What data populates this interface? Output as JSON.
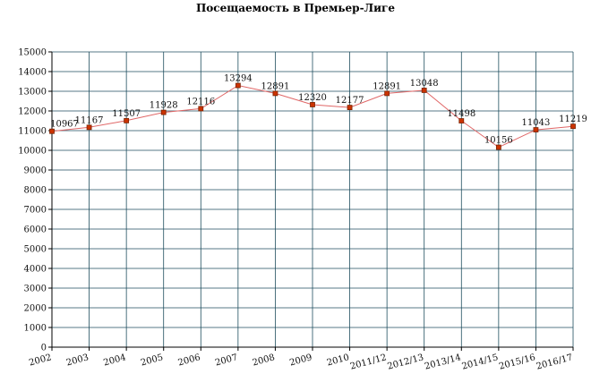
{
  "chart_data": {
    "type": "line",
    "title": "Посещаемость в Премьер-Лиге",
    "xlabel": "",
    "ylabel": "",
    "ylim": [
      0,
      15000
    ],
    "yticks": [
      0,
      1000,
      2000,
      3000,
      4000,
      5000,
      6000,
      7000,
      8000,
      9000,
      10000,
      11000,
      12000,
      13000,
      14000,
      15000
    ],
    "grid": true,
    "categories": [
      "2002",
      "2003",
      "2004",
      "2005",
      "2006",
      "2007",
      "2008",
      "2009",
      "2010",
      "2011/12",
      "2012/13",
      "2013/14",
      "2014/15",
      "2015/16",
      "2016/17"
    ],
    "series": [
      {
        "values": [
          10967,
          11167,
          11507,
          11928,
          12116,
          13294,
          12891,
          12320,
          12177,
          12891,
          13048,
          11498,
          10156,
          11043,
          11219
        ],
        "labels": [
          "10967",
          "11167",
          "11507",
          "11928",
          "12116",
          "13294",
          "12891",
          "12320",
          "12177",
          "12891",
          "13048",
          "11498",
          "10156",
          "11043",
          "11219"
        ]
      }
    ],
    "colors": {
      "line": "#e06666",
      "marker_fill": "#cc3300",
      "marker_stroke": "#7a2200",
      "grid": "#1f4e5f",
      "axis": "#000000"
    }
  }
}
